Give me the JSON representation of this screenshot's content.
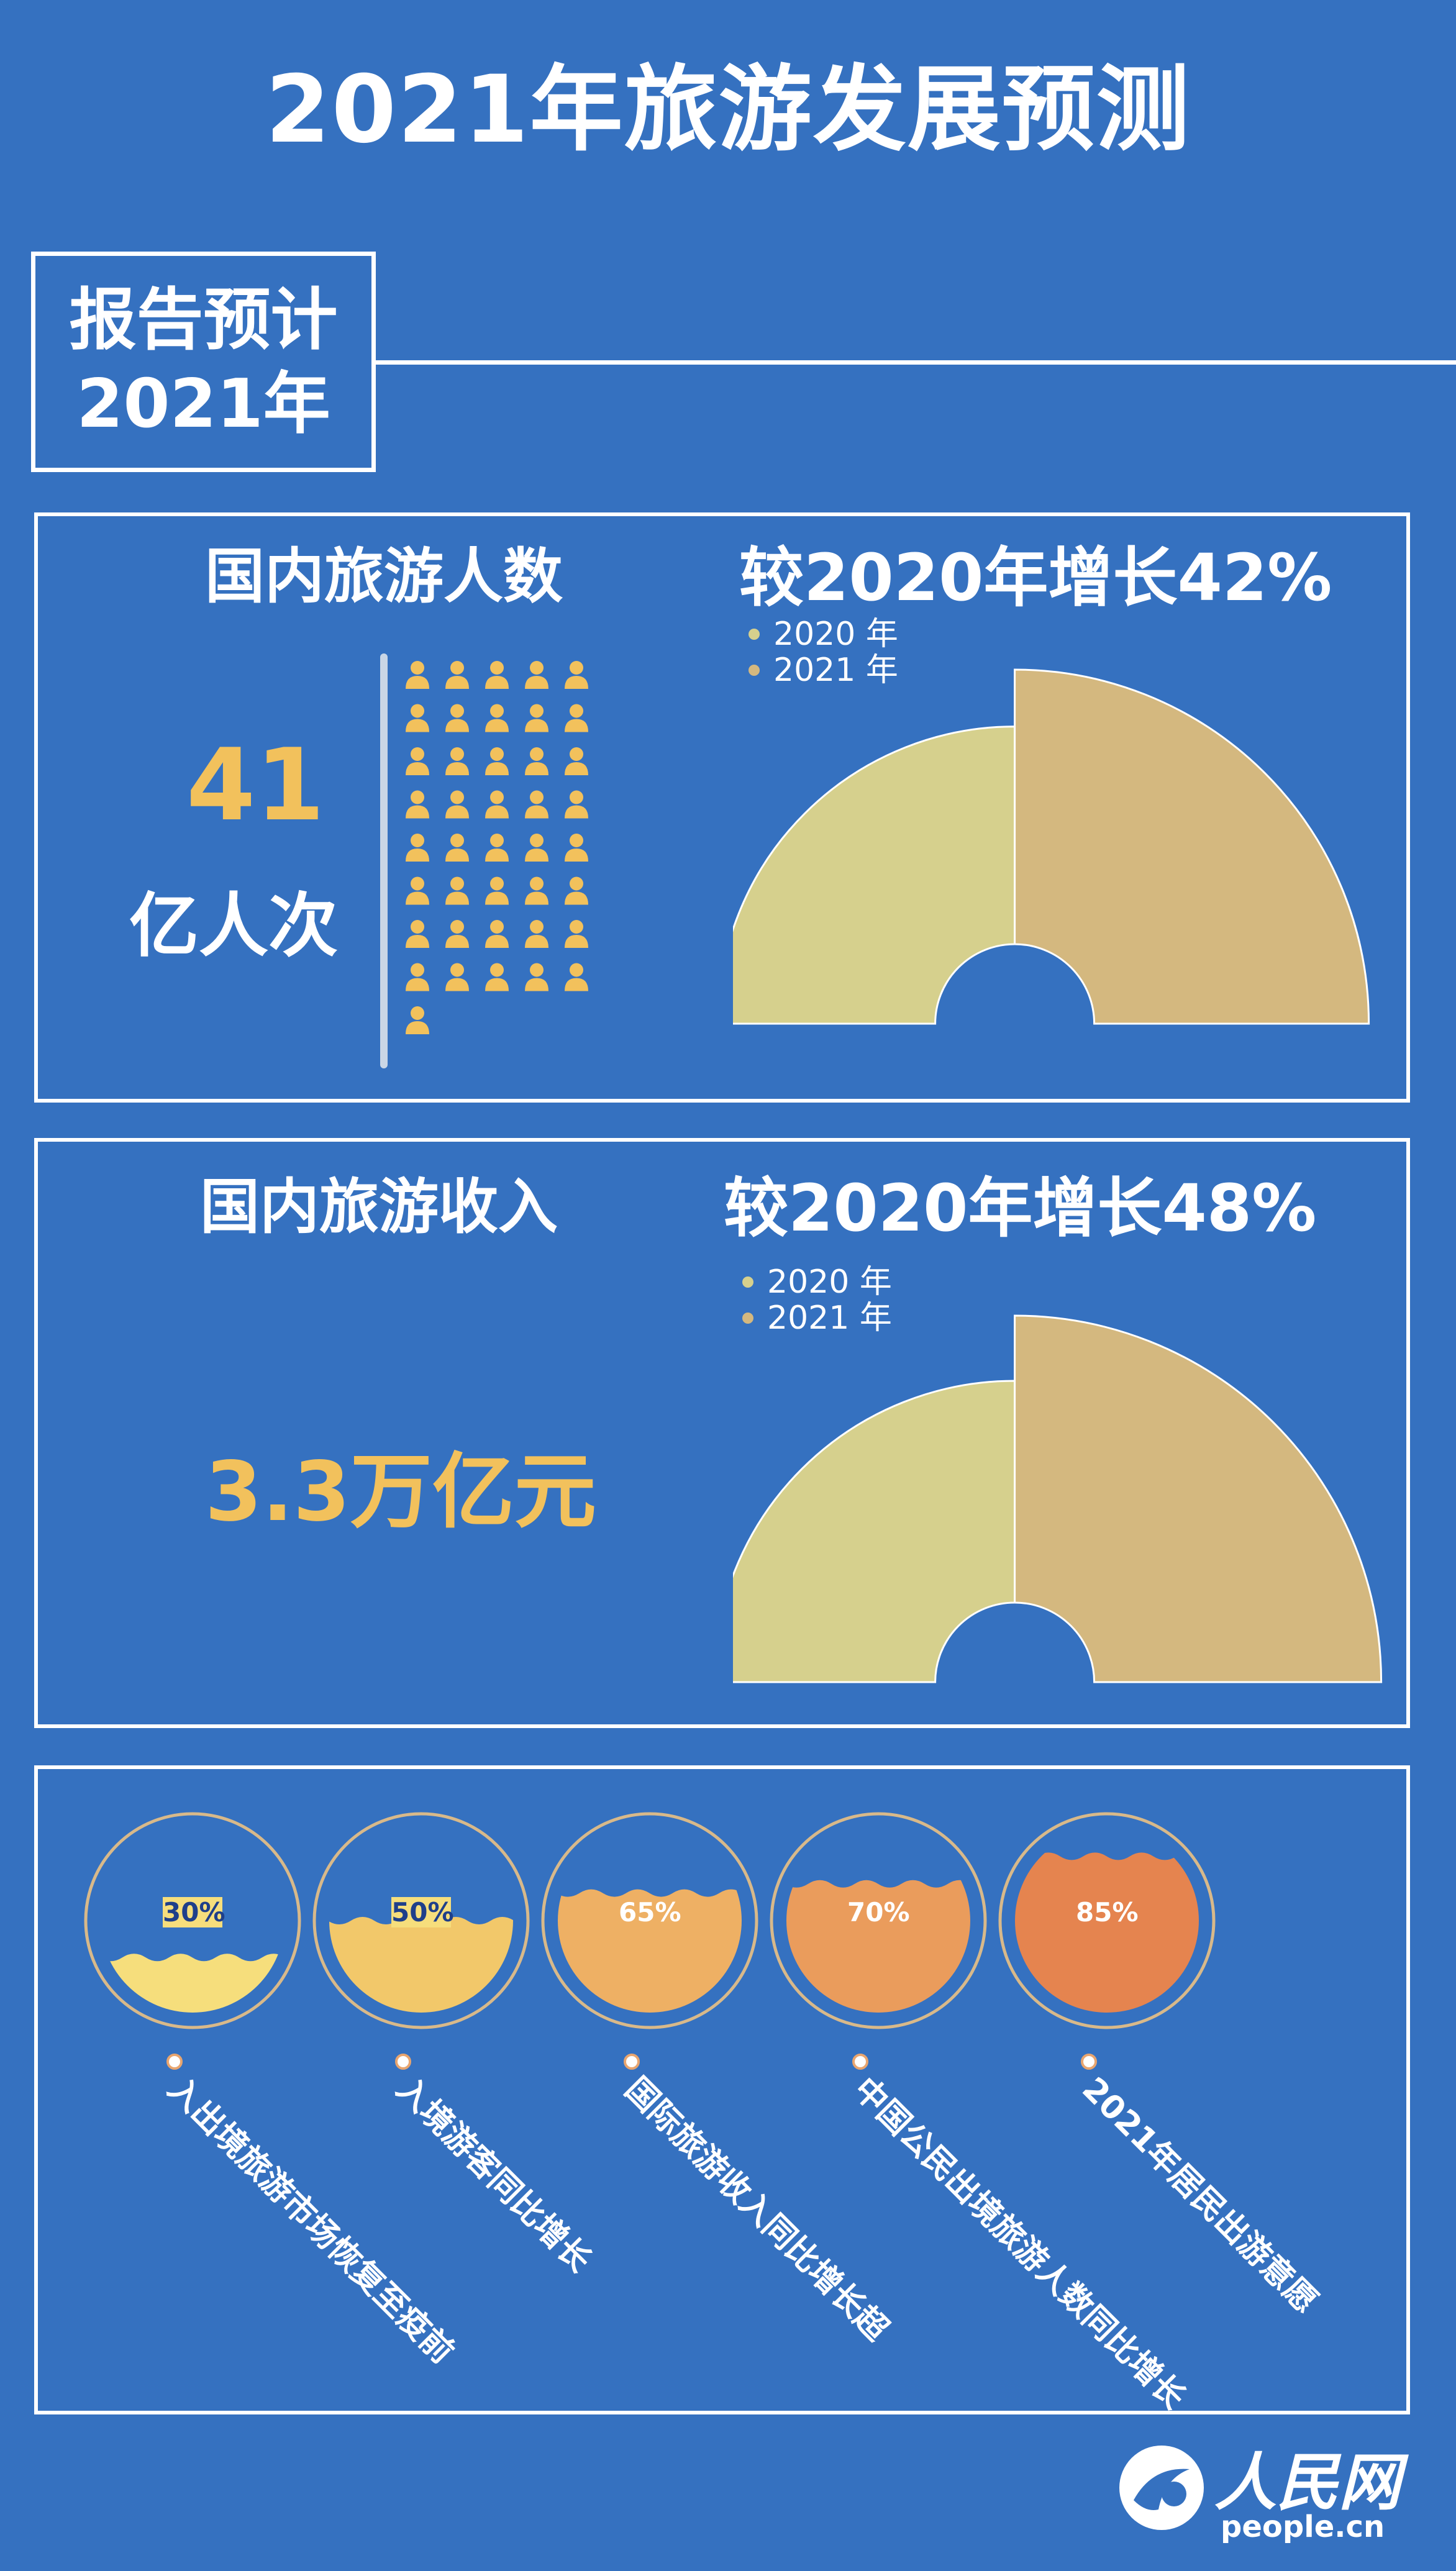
{
  "title": "2021年旅游发展预测",
  "report": {
    "line1": "报告预计",
    "line2": "2021年"
  },
  "section1": {
    "heading": "国内旅游人数",
    "growth": "较2020年增长42%",
    "value": "41",
    "unit": "亿人次",
    "person_icon_count": 41
  },
  "section2": {
    "heading": "国内旅游收入",
    "growth": "较2020年增长48%",
    "value": "3.3万亿元"
  },
  "chart_data": [
    {
      "type": "bar",
      "style": "half-donut",
      "categories": [
        "2020 年",
        "2021 年"
      ],
      "values": [
        1.0,
        1.42
      ],
      "colors": [
        "#d6d08d",
        "#d4b87f"
      ],
      "growth_percent": 42
    },
    {
      "type": "bar",
      "style": "half-donut",
      "categories": [
        "2020 年",
        "2021 年"
      ],
      "values": [
        1.0,
        1.48
      ],
      "colors": [
        "#d6d08d",
        "#d4b87f"
      ],
      "growth_percent": 48
    },
    {
      "type": "bar",
      "style": "wave-circle",
      "categories": [
        "入出境旅游市场恢复至疫前",
        "入境游客同比增长",
        "国际旅游收入同比增长超",
        "中国公民出境旅游人数同比增长",
        "2021年居民出游意愿"
      ],
      "values": [
        30,
        50,
        65,
        70,
        85
      ],
      "labels": [
        "30%",
        "50%",
        "65%",
        "70%",
        "85%"
      ],
      "colors": [
        "#f6de7c",
        "#f2c86a",
        "#eeb064",
        "#ea9c5c",
        "#e5844f"
      ]
    }
  ],
  "legend_colors": {
    "y2020": "#d6d08d",
    "y2021": "#d4b87f"
  },
  "accent_color": "#f2c15c",
  "background_color": "#3571c0",
  "logo": {
    "name": "人民网",
    "url": "people.cn"
  }
}
